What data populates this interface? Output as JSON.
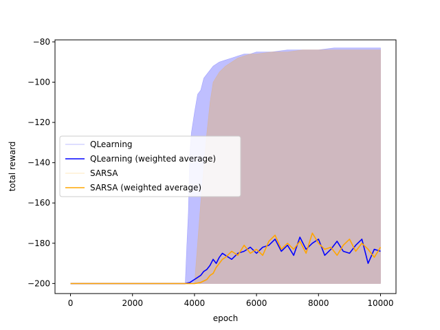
{
  "chart_data": {
    "type": "line",
    "xlabel": "epoch",
    "ylabel": "total reward",
    "xlim": [
      -500,
      10500
    ],
    "ylim": [
      -205,
      -79
    ],
    "xticks": [
      0,
      2000,
      4000,
      6000,
      8000,
      10000
    ],
    "yticks": [
      -200,
      -180,
      -160,
      -140,
      -120,
      -100,
      -80
    ],
    "xtick_labels": [
      "0",
      "2000",
      "4000",
      "6000",
      "8000",
      "10000"
    ],
    "ytick_labels": [
      "−200",
      "−180",
      "−160",
      "−140",
      "−120",
      "−100",
      "−80"
    ],
    "grid": false,
    "legend_position": "center-left",
    "series": [
      {
        "name": "QLearning",
        "style": "raw",
        "color": "#0000ff",
        "alpha": 0.25,
        "x": [
          0,
          3700,
          3750,
          3800,
          3850,
          3900,
          4000,
          4100,
          4200,
          4300,
          4400,
          4500,
          4600,
          4800,
          5000,
          5200,
          5400,
          5600,
          5800,
          6000,
          6500,
          7000,
          7500,
          8000,
          8500,
          9000,
          9500,
          10000
        ],
        "min": [
          -200,
          -200,
          -200,
          -200,
          -200,
          -200,
          -200,
          -200,
          -200,
          -200,
          -200,
          -200,
          -200,
          -200,
          -200,
          -200,
          -200,
          -200,
          -200,
          -200,
          -200,
          -200,
          -200,
          -200,
          -200,
          -200,
          -200,
          -200
        ],
        "max": [
          -200,
          -200,
          -182,
          -165,
          -135,
          -125,
          -115,
          -106,
          -104,
          -98,
          -96,
          -94,
          -92,
          -90,
          -89,
          -88,
          -87,
          -86,
          -86,
          -85,
          -85,
          -84,
          -84,
          -84,
          -83,
          -83,
          -83,
          -83
        ]
      },
      {
        "name": "QLearning (weighted average)",
        "style": "smoothed",
        "color": "#0000ff",
        "x": [
          0,
          3700,
          3850,
          4000,
          4100,
          4200,
          4300,
          4400,
          4500,
          4600,
          4700,
          4800,
          4900,
          5000,
          5200,
          5400,
          5600,
          5800,
          6000,
          6200,
          6400,
          6600,
          6800,
          7000,
          7200,
          7400,
          7600,
          7800,
          8000,
          8200,
          8400,
          8600,
          8800,
          9000,
          9200,
          9400,
          9600,
          9800,
          10000
        ],
        "y": [
          -200,
          -200,
          -199.5,
          -198,
          -197,
          -196,
          -194,
          -193,
          -191,
          -188,
          -190,
          -187,
          -185,
          -186,
          -188,
          -185,
          -184,
          -182,
          -185,
          -182,
          -181,
          -178,
          -184,
          -181,
          -186,
          -177,
          -183,
          -180,
          -178,
          -186,
          -183,
          -179,
          -184,
          -185,
          -181,
          -178,
          -190,
          -183,
          -184
        ]
      },
      {
        "name": "SARSA",
        "style": "raw",
        "color": "#ffa500",
        "alpha": 0.25,
        "x": [
          0,
          4000,
          4200,
          4400,
          4500,
          4600,
          4800,
          5000,
          5200,
          5400,
          5600,
          5800,
          6000,
          6500,
          7000,
          7500,
          8000,
          8500,
          9000,
          9500,
          10000
        ],
        "min": [
          -200,
          -200,
          -200,
          -200,
          -200,
          -200,
          -200,
          -200,
          -200,
          -200,
          -200,
          -200,
          -200,
          -200,
          -200,
          -200,
          -200,
          -200,
          -200,
          -200,
          -200
        ],
        "max": [
          -200,
          -200,
          -160,
          -125,
          -110,
          -100,
          -95,
          -92,
          -90,
          -88,
          -87,
          -86,
          -86,
          -85,
          -85,
          -84,
          -84,
          -84,
          -84,
          -84,
          -84
        ]
      },
      {
        "name": "SARSA (weighted average)",
        "style": "smoothed",
        "color": "#ffa500",
        "x": [
          0,
          4000,
          4200,
          4400,
          4500,
          4600,
          4700,
          4800,
          4900,
          5000,
          5200,
          5400,
          5600,
          5800,
          6000,
          6200,
          6400,
          6600,
          6800,
          7000,
          7200,
          7400,
          7600,
          7800,
          8000,
          8200,
          8400,
          8600,
          8800,
          9000,
          9200,
          9400,
          9600,
          9800,
          10000
        ],
        "y": [
          -200,
          -200,
          -199.5,
          -198,
          -196,
          -195,
          -192,
          -190,
          -188,
          -187,
          -184,
          -186,
          -181,
          -185,
          -183,
          -186,
          -179,
          -176,
          -183,
          -180,
          -183,
          -179,
          -185,
          -175,
          -180,
          -183,
          -182,
          -186,
          -181,
          -178,
          -184,
          -180,
          -183,
          -187,
          -182
        ]
      }
    ]
  },
  "legend": [
    {
      "label": "QLearning",
      "color": "#0000ff",
      "style": "raw"
    },
    {
      "label": "QLearning (weighted average)",
      "color": "#0000ff",
      "style": "smoothed"
    },
    {
      "label": "SARSA",
      "color": "#ffa500",
      "style": "raw"
    },
    {
      "label": "SARSA (weighted average)",
      "color": "#ffa500",
      "style": "smoothed"
    }
  ]
}
